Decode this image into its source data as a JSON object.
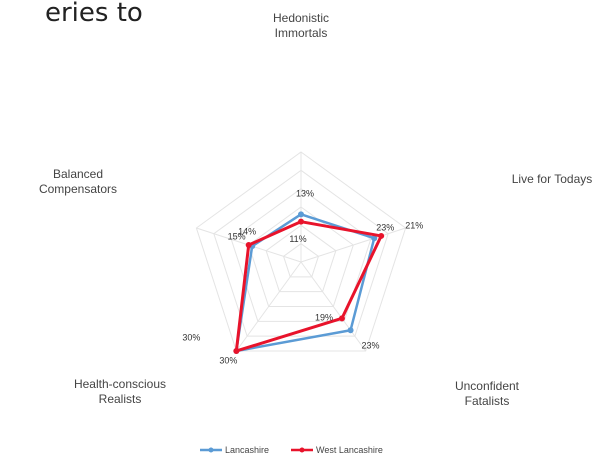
{
  "header_fragment": "eries to",
  "chart_data": {
    "type": "radar",
    "categories": [
      [
        "Hedonistic",
        "Immortals"
      ],
      [
        "Live for Todays"
      ],
      [
        "Unconfident",
        "Fatalists"
      ],
      [
        "Health-conscious",
        "Realists"
      ],
      [
        "Balanced",
        "Compensators"
      ]
    ],
    "series": [
      {
        "name": "Lancashire",
        "values": [
          13,
          21,
          23,
          30,
          14
        ],
        "labels": [
          "13%",
          "21%",
          "23%",
          "30%",
          "14%"
        ],
        "color": "#5b9bd5"
      },
      {
        "name": "West Lancashire",
        "values": [
          11,
          23,
          19,
          30,
          15
        ],
        "labels": [
          "11%",
          "23%",
          "19%",
          "30%",
          "15%"
        ],
        "color": "#e8132b"
      }
    ],
    "rmax": 30,
    "grid_rings": 6,
    "grid": true,
    "legend": "bottom"
  }
}
